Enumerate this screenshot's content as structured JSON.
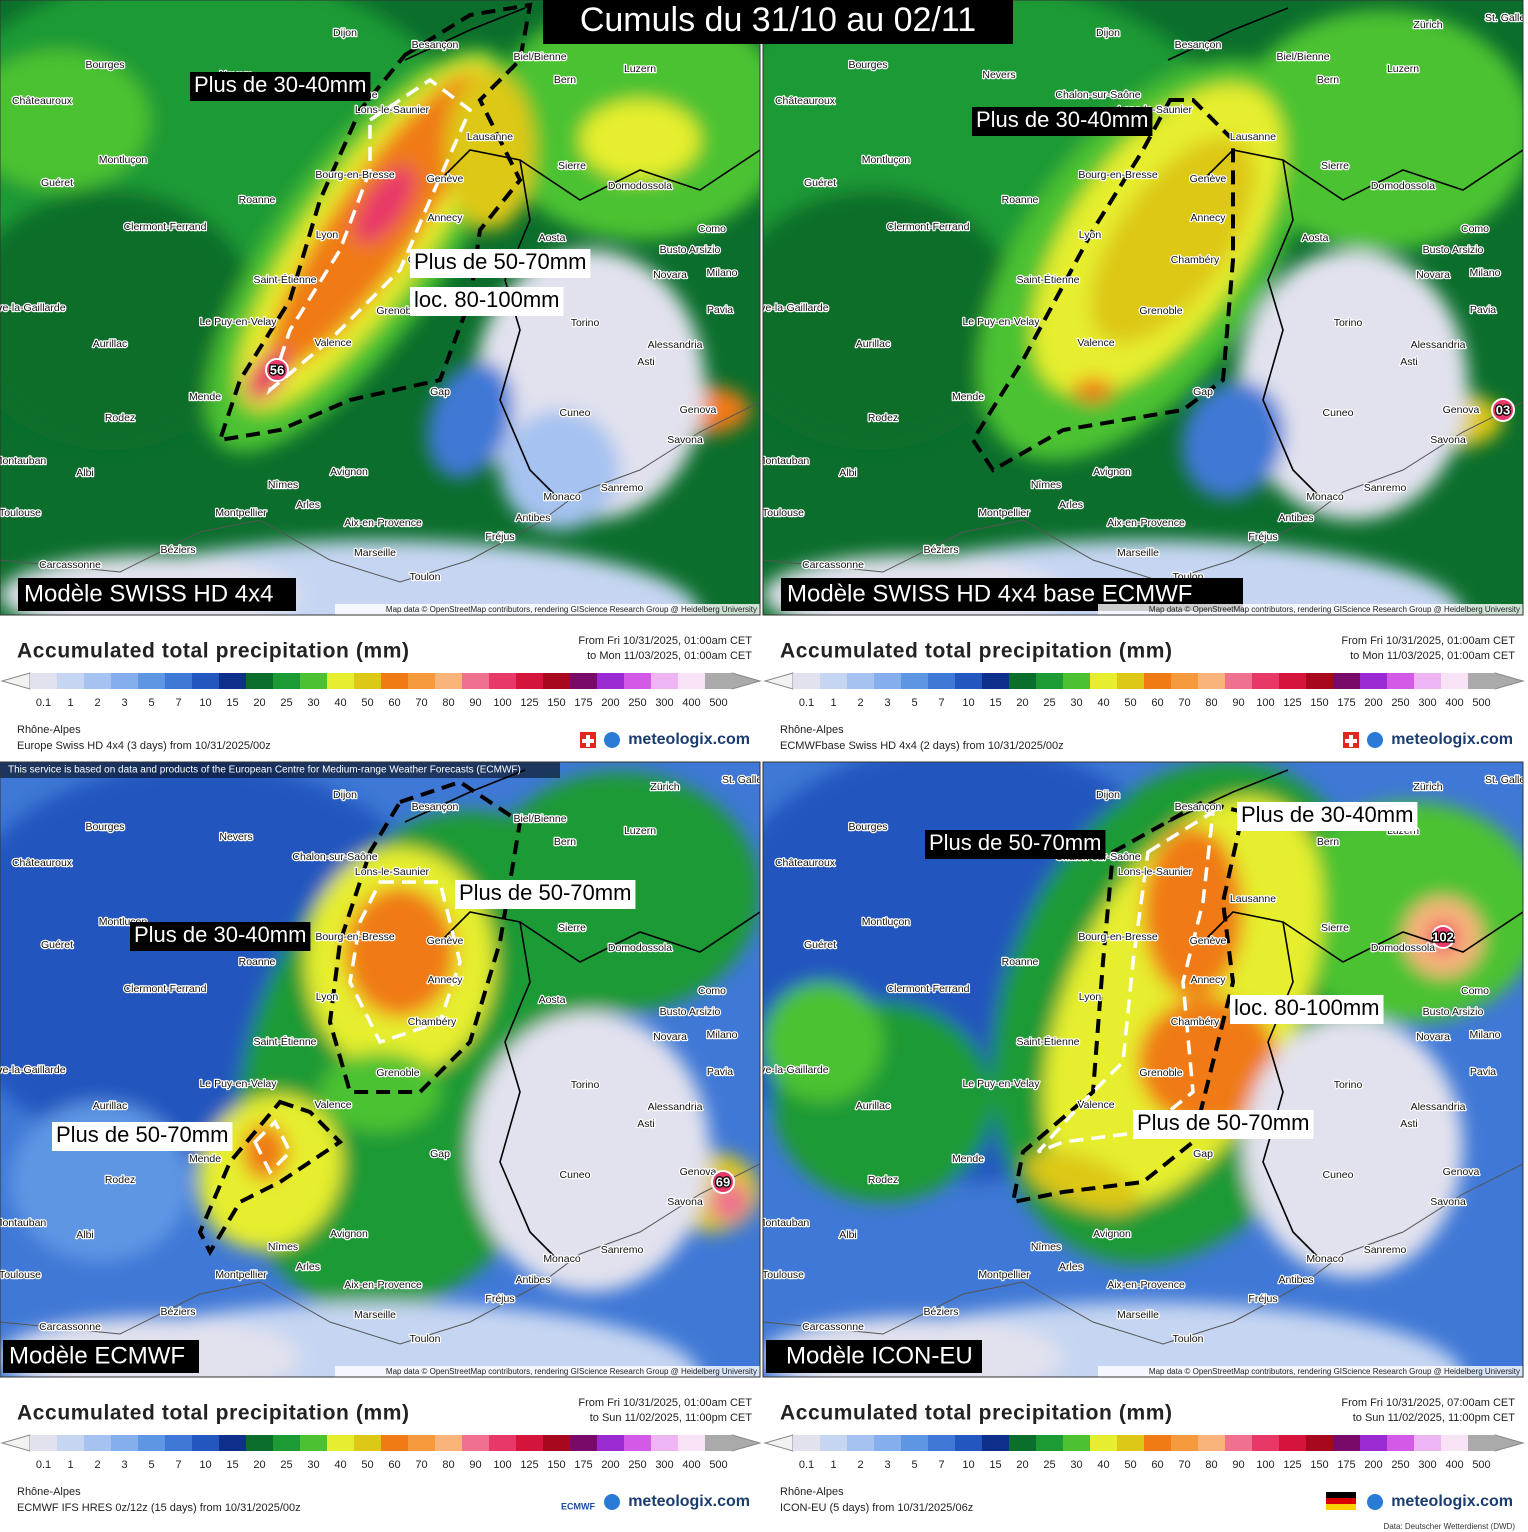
{
  "title": "Cumuls du 31/10 au 02/11",
  "cities": [
    "Dijon",
    "Besançon",
    "Bourges",
    "Nevers",
    "Châteauroux",
    "Chalon-sur-Saône",
    "Lons-le-Saunier",
    "Biel/Bienne",
    "Bern",
    "Zürich",
    "Luzern",
    "Lausanne",
    "Montluçon",
    "Guéret",
    "Bourg-en-Bresse",
    "Genève",
    "Sierre",
    "Domodossola",
    "Roanne",
    "Annecy",
    "Clermont-Ferrand",
    "Lyon",
    "Aosta",
    "Como",
    "Busto Arsizio",
    "Novara",
    "Milano",
    "Saint-Étienne",
    "Chambéry",
    "Brive-la-Gaillarde",
    "Le Puy-en-Velay",
    "Grenoble",
    "Torino",
    "Pavia",
    "Aurillac",
    "Valence",
    "Alessandria",
    "Asti",
    "Mende",
    "Gap",
    "Rodez",
    "Cuneo",
    "Genova",
    "Savona",
    "Montauban",
    "Albi",
    "Avignon",
    "Nîmes",
    "Arles",
    "Sanremo",
    "Monaco",
    "Toulouse",
    "Montpellier",
    "Antibes",
    "Aix-en-Provence",
    "Fréjus",
    "Béziers",
    "Marseille",
    "Carcassonne",
    "Toulon",
    "St. Gallen"
  ],
  "legend": {
    "title": "Accumulated total precipitation (mm)",
    "levels": [
      0.1,
      1,
      2,
      3,
      5,
      7,
      10,
      15,
      20,
      25,
      30,
      40,
      50,
      60,
      70,
      80,
      90,
      100,
      125,
      150,
      175,
      200,
      250,
      300,
      400,
      500
    ],
    "colors": [
      "#e2e2ee",
      "#c6d6f2",
      "#a6c2f0",
      "#84aeec",
      "#5f96e4",
      "#3f78d6",
      "#2356be",
      "#0f2f8c",
      "#0b6e2c",
      "#1c9a34",
      "#4cc232",
      "#e6ee2e",
      "#ddc818",
      "#f07a14",
      "#f49a3c",
      "#f8b47a",
      "#f07090",
      "#e83868",
      "#d4143a",
      "#a8081e",
      "#7a0a6a",
      "#9a2ad2",
      "#d25ae6",
      "#eeb4f4",
      "#f8e2f6",
      "#aaaaaa"
    ]
  },
  "attribution": "Map data © OpenStreetMap contributors, rendering GIScience Research Group @ Heidelberg University",
  "brand": "meteologix.com",
  "panels": [
    {
      "model_label": "Modèle SWISS HD 4x4",
      "annotations": [
        "Plus de 30-40mm",
        "Plus de 50-70mm",
        "loc. 80-100mm"
      ],
      "peak": "56",
      "from": "From Fri 10/31/2025, 01:00am CET",
      "to": "to Mon 11/03/2025, 01:00am CET",
      "region": "Rhône-Alpes",
      "model_info": "Europe Swiss HD 4x4 (3 days) from 10/31/2025/00z"
    },
    {
      "model_label": "Modèle SWISS HD 4x4 base ECMWF",
      "annotations": [
        "Plus de 30-40mm"
      ],
      "peak": "03",
      "from": "From Fri 10/31/2025, 01:00am CET",
      "to": "to Mon 11/03/2025, 01:00am CET",
      "region": "Rhône-Alpes",
      "model_info": "ECMWFbase Swiss HD 4x4 (2 days) from 10/31/2025/00z"
    },
    {
      "model_label": "Modèle ECMWF",
      "annotations": [
        "Plus de 50-70mm",
        "Plus de 30-40mm",
        "Plus de 50-70mm"
      ],
      "peak": "69",
      "from": "From Fri 10/31/2025, 01:00am CET",
      "to": "to Sun 11/02/2025, 11:00pm CET",
      "region": "Rhône-Alpes",
      "model_info": "ECMWF IFS HRES 0z/12z (15 days) from 10/31/2025/00z",
      "notice": "This service is based on data and products of the European Centre for Medium-range Weather Forecasts (ECMWF)",
      "logo": "ECMWF"
    },
    {
      "model_label": "Modèle ICON-EU",
      "annotations": [
        "Plus de 30-40mm",
        "Plus de 50-70mm",
        "loc. 80-100mm",
        "Plus de 50-70mm"
      ],
      "peak": "102",
      "from": "From Fri 10/31/2025, 07:00am CET",
      "to": "to Sun 11/02/2025, 11:00pm CET",
      "region": "Rhône-Alpes",
      "model_info": "ICON-EU (5 days) from 10/31/2025/06z",
      "footnote": "Data: Deutscher Wetterdienst (DWD)"
    }
  ]
}
